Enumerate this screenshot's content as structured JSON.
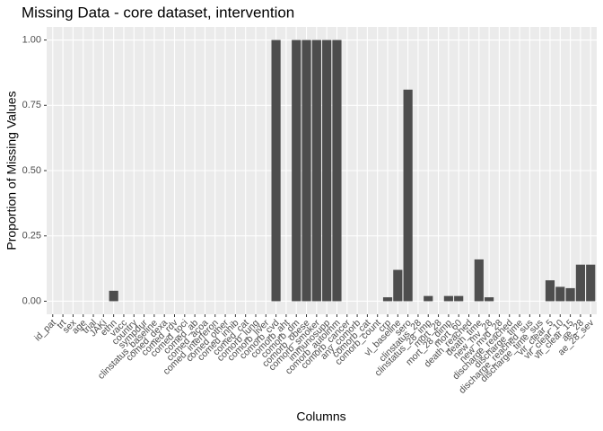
{
  "chart_data": {
    "type": "bar",
    "title": "Missing Data - core dataset, intervention",
    "x_label": "Columns",
    "y_label": "Proportion of Missing Values",
    "color": "#4d4d4d",
    "categories": [
      "id_pat",
      "trt",
      "sex",
      "age",
      "trial",
      "JAKi",
      "ethn",
      "vacc",
      "country",
      "sympdur",
      "clinstatus_baseline",
      "comed_dexa",
      "comed_rdv",
      "comed_toci",
      "comed_ab",
      "comed_acoa",
      "comed_interferon",
      "comed_other",
      "comed_inhib",
      "comed_cat",
      "comorb_lung",
      "comorb_liver",
      "comorb_cvd",
      "comorb_aht",
      "comorb_dm",
      "comorb_obese",
      "comorb_smoker",
      "immunosupp",
      "comorb_autoimm",
      "comorb_cancer",
      "any_comorb",
      "comorb_cat",
      "comorb_count",
      "crp",
      "vl_baseline",
      "sero",
      "clinstatus_28",
      "clinstatus_28_imp",
      "mort_28",
      "mort_28_dimp",
      "mort_60",
      "death_reached",
      "death_time",
      "new_mv_28",
      "new_mvd_28",
      "discharge_reached",
      "discharge_time",
      "discharge_reached_sus",
      "discharge_time_sus",
      "vir_clear_5",
      "vir_clear_10",
      "vir_clear_15",
      "ae_28",
      "ae_28_sev"
    ],
    "values": [
      0,
      0,
      0,
      0,
      0,
      0,
      0.04,
      0,
      0,
      0,
      0,
      0,
      0,
      0,
      0,
      0,
      0,
      0,
      0,
      0,
      0,
      0,
      1,
      0,
      1,
      1,
      1,
      1,
      1,
      0,
      0,
      0,
      0,
      0.015,
      0.12,
      0.81,
      0,
      0.02,
      0,
      0.02,
      0.02,
      0,
      0.16,
      0.015,
      0,
      0,
      0,
      0,
      0,
      0.08,
      0.055,
      0.05,
      0.14,
      0.14
    ],
    "ylim": [
      -0.05,
      1.05
    ],
    "yticks": [
      {
        "value": 0,
        "label": "0.00"
      },
      {
        "value": 0.25,
        "label": "0.25"
      },
      {
        "value": 0.5,
        "label": "0.50"
      },
      {
        "value": 0.75,
        "label": "0.75"
      },
      {
        "value": 1,
        "label": "1.00"
      }
    ],
    "grid": true
  }
}
